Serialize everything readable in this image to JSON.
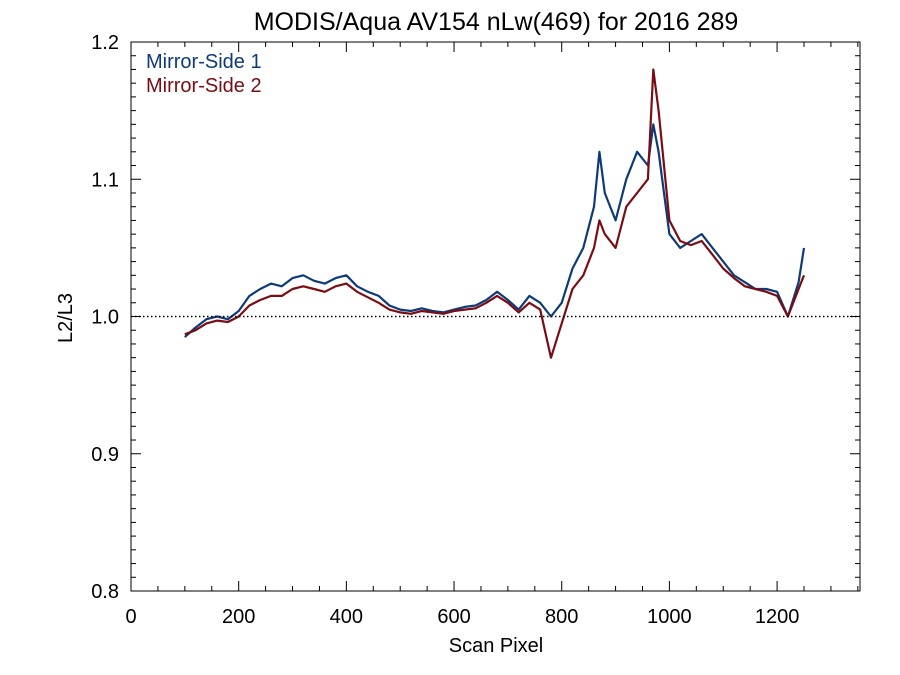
{
  "chart_data": {
    "type": "line",
    "title": "MODIS/Aqua AV154 nLw(469) for 2016 289",
    "xlabel": "Scan Pixel",
    "ylabel": "L2/L3",
    "xlim": [
      0,
      1354
    ],
    "ylim": [
      0.8,
      1.2
    ],
    "x_ticks": [
      0,
      200,
      400,
      600,
      800,
      1000,
      1200
    ],
    "x_tick_labels": [
      "0",
      "200",
      "400",
      "600",
      "800",
      "1000",
      "1200"
    ],
    "y_ticks": [
      0.8,
      0.9,
      1.0,
      1.1,
      1.2
    ],
    "y_tick_labels": [
      "0.8",
      "0.9",
      "1.0",
      "1.1",
      "1.2"
    ],
    "reference_line": 1.0,
    "legend_position": "top-left",
    "grid": false,
    "x": [
      100,
      120,
      140,
      160,
      180,
      200,
      220,
      240,
      260,
      280,
      300,
      320,
      340,
      360,
      380,
      400,
      420,
      440,
      460,
      480,
      500,
      520,
      540,
      560,
      580,
      600,
      620,
      640,
      660,
      680,
      700,
      720,
      740,
      760,
      780,
      800,
      820,
      840,
      860,
      870,
      880,
      900,
      920,
      940,
      960,
      970,
      980,
      1000,
      1020,
      1040,
      1060,
      1080,
      1100,
      1120,
      1140,
      1160,
      1180,
      1200,
      1220,
      1240,
      1250
    ],
    "series": [
      {
        "name": "Mirror-Side 1",
        "color": "#0f3a7a",
        "values": [
          0.985,
          0.992,
          0.998,
          1.0,
          0.998,
          1.004,
          1.015,
          1.02,
          1.024,
          1.022,
          1.028,
          1.03,
          1.026,
          1.024,
          1.028,
          1.03,
          1.022,
          1.018,
          1.015,
          1.008,
          1.005,
          1.004,
          1.006,
          1.004,
          1.003,
          1.005,
          1.007,
          1.008,
          1.012,
          1.018,
          1.012,
          1.005,
          1.015,
          1.01,
          1.0,
          1.01,
          1.035,
          1.05,
          1.08,
          1.12,
          1.09,
          1.07,
          1.1,
          1.12,
          1.11,
          1.14,
          1.12,
          1.06,
          1.05,
          1.055,
          1.06,
          1.05,
          1.04,
          1.03,
          1.025,
          1.02,
          1.02,
          1.018,
          1.0,
          1.025,
          1.05
        ]
      },
      {
        "name": "Mirror-Side 2",
        "color": "#7a0d14",
        "values": [
          0.987,
          0.99,
          0.995,
          0.997,
          0.996,
          1.0,
          1.008,
          1.012,
          1.015,
          1.015,
          1.02,
          1.022,
          1.02,
          1.018,
          1.022,
          1.024,
          1.018,
          1.014,
          1.01,
          1.005,
          1.003,
          1.002,
          1.004,
          1.003,
          1.002,
          1.004,
          1.005,
          1.006,
          1.01,
          1.015,
          1.01,
          1.003,
          1.01,
          1.005,
          0.97,
          0.995,
          1.02,
          1.03,
          1.05,
          1.07,
          1.06,
          1.05,
          1.08,
          1.09,
          1.1,
          1.18,
          1.15,
          1.07,
          1.055,
          1.052,
          1.055,
          1.045,
          1.035,
          1.028,
          1.022,
          1.02,
          1.018,
          1.015,
          1.0,
          1.02,
          1.03
        ]
      }
    ]
  }
}
